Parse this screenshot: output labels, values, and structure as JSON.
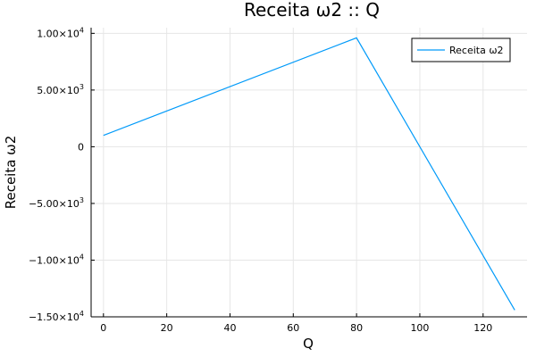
{
  "chart_data": {
    "type": "line",
    "title": "Receita ω2 :: Q",
    "xlabel": "Q",
    "ylabel": "Receita ω2",
    "xlim": [
      -3.9,
      133.9
    ],
    "ylim": [
      -15000,
      10500
    ],
    "xticks": [
      0,
      20,
      40,
      60,
      80,
      100,
      120
    ],
    "xtick_labels": [
      "0",
      "20",
      "40",
      "60",
      "80",
      "100",
      "120"
    ],
    "yticks": [
      10000,
      5000,
      0,
      -5000,
      -10000,
      -15000
    ],
    "ytick_labels": [
      {
        "mant": "1.00×10",
        "exp": "4"
      },
      {
        "mant": "5.00×10",
        "exp": "3"
      },
      {
        "mant": "0",
        "exp": ""
      },
      {
        "mant": "−5.00×10",
        "exp": "3"
      },
      {
        "mant": "−1.00×10",
        "exp": "4"
      },
      {
        "mant": "−1.50×10",
        "exp": "4"
      }
    ],
    "grid": true,
    "legend_position": "top-right",
    "series": [
      {
        "name": "Receita ω2",
        "color": "#009af9",
        "x": [
          0,
          80,
          130
        ],
        "y": [
          1000,
          9600,
          -14400
        ]
      }
    ]
  }
}
